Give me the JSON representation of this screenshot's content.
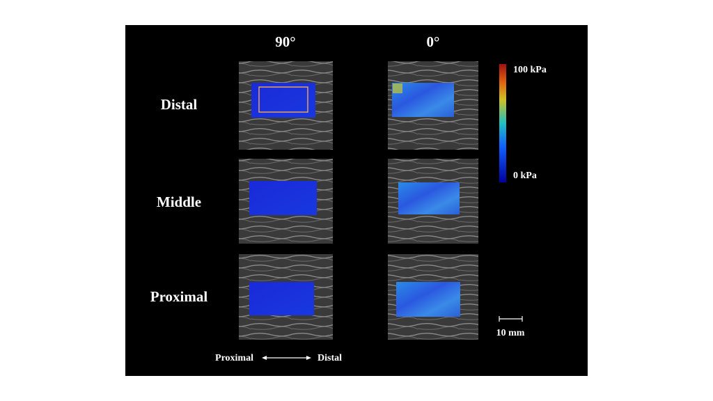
{
  "column_headers": [
    "90°",
    "0°"
  ],
  "row_labels": [
    "Distal",
    "Middle",
    "Proximal"
  ],
  "colorbar": {
    "max_label": "100 kPa",
    "min_label": "0 kPa"
  },
  "scale_bar": {
    "label": "10 mm"
  },
  "direction": {
    "left": "Proximal",
    "right": "Distal"
  }
}
